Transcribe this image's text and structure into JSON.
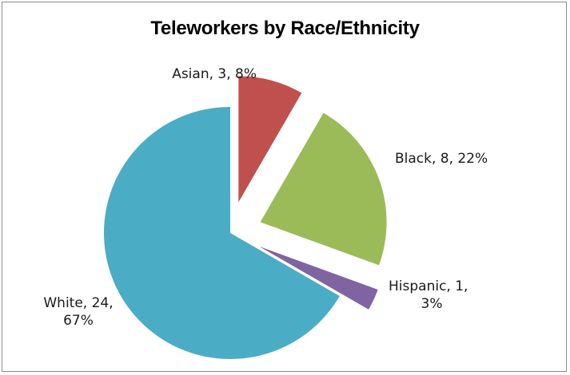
{
  "chart_data": {
    "type": "pie",
    "title": "Teleworkers by Race/Ethnicity",
    "slices": [
      {
        "category": "Asian",
        "value": 3,
        "percent": 8,
        "color": "#c0504d",
        "exploded": true,
        "label_lines": [
          "Asian, 3, 8%"
        ]
      },
      {
        "category": "Black",
        "value": 8,
        "percent": 22,
        "color": "#9bbb59",
        "exploded": true,
        "label_lines": [
          "Black, 8, 22%"
        ]
      },
      {
        "category": "Hispanic",
        "value": 1,
        "percent": 3,
        "color": "#8064a2",
        "exploded": true,
        "label_lines": [
          "Hispanic, 1,",
          "3%"
        ]
      },
      {
        "category": "White",
        "value": 24,
        "percent": 67,
        "color": "#4bacc6",
        "exploded": false,
        "label_lines": [
          "White, 24,",
          "67%"
        ]
      }
    ],
    "legend": "none"
  }
}
